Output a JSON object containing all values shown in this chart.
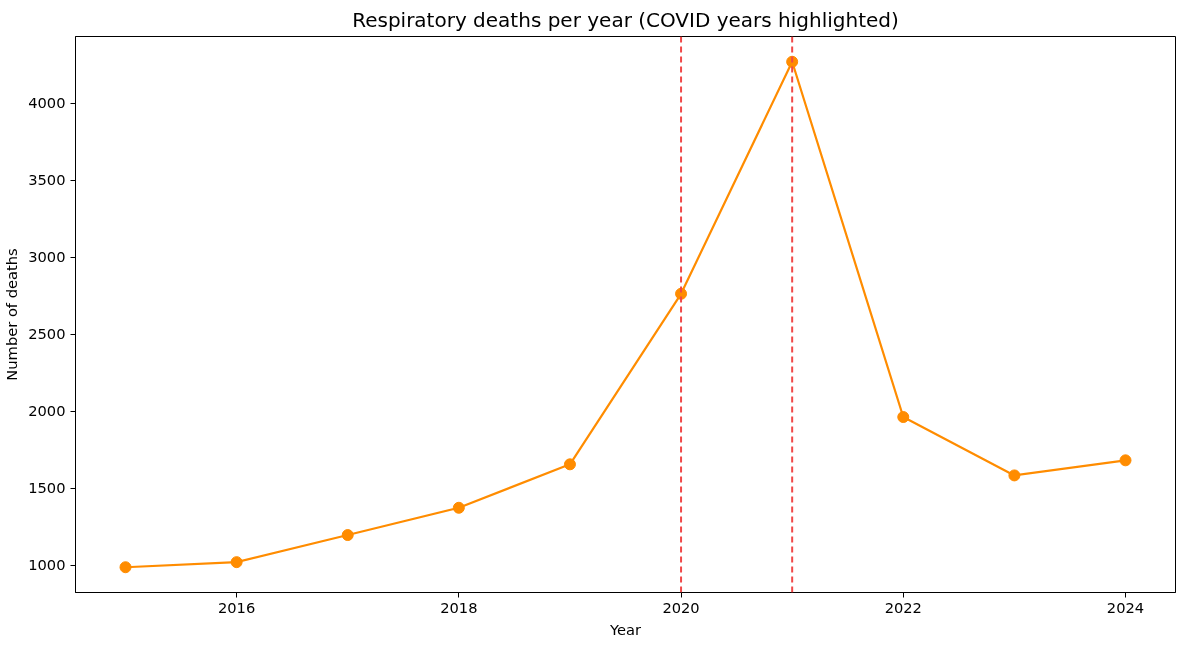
{
  "chart_data": {
    "type": "line",
    "title": "Respiratory deaths per year (COVID years highlighted)",
    "xlabel": "Year",
    "ylabel": "Number of deaths",
    "x": [
      2015,
      2016,
      2017,
      2018,
      2019,
      2020,
      2021,
      2022,
      2023,
      2024
    ],
    "series": [
      {
        "color": "#ff8c00",
        "values": [
          987,
          1020,
          1196,
          1373,
          1655,
          2762,
          4268,
          1962,
          1583,
          1681
        ]
      }
    ],
    "xlim": [
      2014.55,
      2024.45
    ],
    "ylim": [
      823,
      4432
    ],
    "xticks": [
      2016,
      2018,
      2020,
      2022,
      2024
    ],
    "yticks": [
      1000,
      1500,
      2000,
      2500,
      3000,
      3500,
      4000
    ],
    "ref_lines": [
      {
        "axis": "x",
        "value": 2020,
        "color": "#f04848",
        "line_style": "dashed"
      },
      {
        "axis": "x",
        "value": 2021,
        "color": "#f04848",
        "line_style": "dashed"
      }
    ],
    "marker": "circle",
    "line_style": "solid",
    "grid": false
  }
}
